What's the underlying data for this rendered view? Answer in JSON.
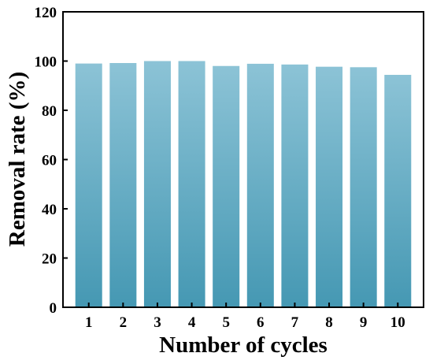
{
  "chart_data": {
    "type": "bar",
    "title": "",
    "xlabel": "Number of cycles",
    "ylabel": "Removal rate (%)",
    "categories": [
      "1",
      "2",
      "3",
      "4",
      "5",
      "6",
      "7",
      "8",
      "9",
      "10"
    ],
    "values": [
      99.0,
      99.2,
      100.0,
      100.0,
      98.0,
      98.9,
      98.6,
      97.7,
      97.5,
      94.4
    ],
    "ylim": [
      0,
      120
    ],
    "yticks": [
      "0",
      "20",
      "40",
      "60",
      "80",
      "100",
      "120"
    ],
    "grid": false,
    "legend": "none",
    "bar_color_top": "#8cc3d6",
    "bar_color_bottom": "#4598b3"
  }
}
